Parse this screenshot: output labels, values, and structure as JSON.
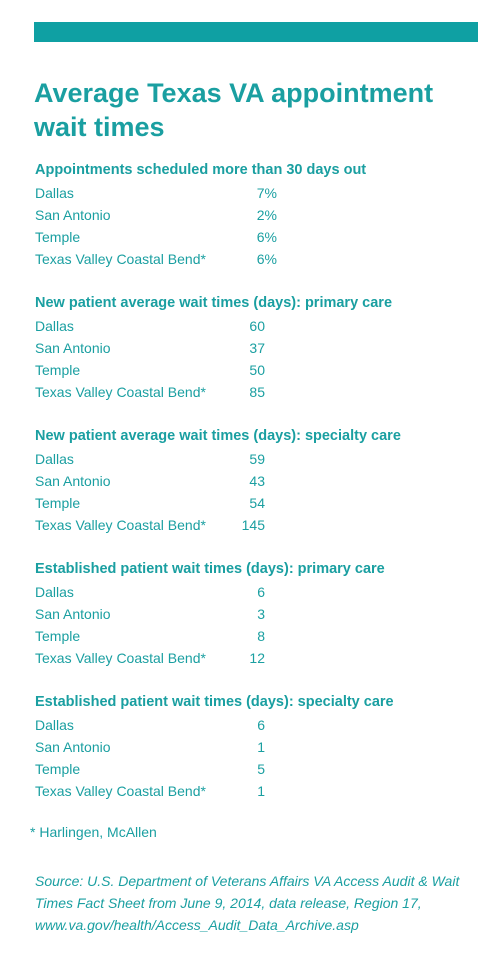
{
  "title": "Average Texas VA appointment wait times",
  "sections": [
    {
      "title": "Appointments scheduled more than 30 days out",
      "rows": [
        {
          "label": "Dallas",
          "value": "7%"
        },
        {
          "label": "San Antonio",
          "value": "2%"
        },
        {
          "label": "Temple",
          "value": "6%"
        },
        {
          "label": "Texas Valley Coastal Bend*",
          "value": "6%"
        }
      ]
    },
    {
      "title": "New patient average wait times (days): primary care",
      "rows": [
        {
          "label": "Dallas",
          "value": "60"
        },
        {
          "label": "San Antonio",
          "value": "37"
        },
        {
          "label": "Temple",
          "value": "50"
        },
        {
          "label": "Texas Valley Coastal Bend*",
          "value": "85"
        }
      ]
    },
    {
      "title": "New patient average wait times (days): specialty care",
      "rows": [
        {
          "label": "Dallas",
          "value": "59"
        },
        {
          "label": "San Antonio",
          "value": "43"
        },
        {
          "label": "Temple",
          "value": "54"
        },
        {
          "label": "Texas Valley Coastal Bend*",
          "value": "145"
        }
      ]
    },
    {
      "title": "Established patient wait times (days): primary care",
      "rows": [
        {
          "label": "Dallas",
          "value": "6"
        },
        {
          "label": "San Antonio",
          "value": "3"
        },
        {
          "label": "Temple",
          "value": "8"
        },
        {
          "label": "Texas Valley Coastal Bend*",
          "value": "12"
        }
      ]
    },
    {
      "title": "Established patient wait times (days): specialty care",
      "rows": [
        {
          "label": "Dallas",
          "value": "6"
        },
        {
          "label": "San Antonio",
          "value": "1"
        },
        {
          "label": "Temple",
          "value": "5"
        },
        {
          "label": "Texas Valley Coastal Bend*",
          "value": "1"
        }
      ]
    }
  ],
  "footnote": "* Harlingen, McAllen",
  "source": "Source: U.S. Department of Veterans Affairs VA Access Audit & Wait Times Fact Sheet from June 9, 2014, data release, Region 17, www.va.gov/health/Access_Audit_Data_Archive.asp"
}
